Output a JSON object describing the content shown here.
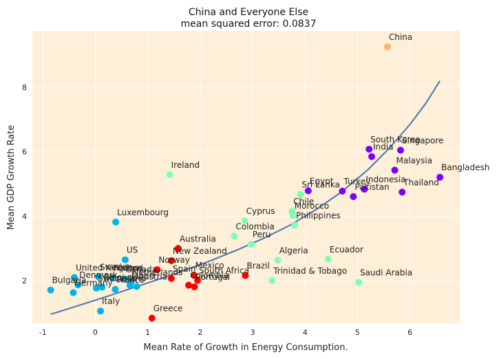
{
  "chart_data": {
    "type": "scatter",
    "title": "China and Everyone Else",
    "subtitle": "mean squared error: 0.0837",
    "xlabel": "Mean Rate of Growth in Energy Consumption.",
    "ylabel": "Mean GDP Growth Rate",
    "xlim": [
      -1.2,
      6.95
    ],
    "ylim": [
      0.68,
      9.75
    ],
    "xticks": [
      -1,
      0,
      1,
      2,
      3,
      4,
      5,
      6
    ],
    "yticks": [
      2,
      4,
      6,
      8
    ],
    "grid": true,
    "background": "#fdefd8",
    "line_color": "#4c72b0",
    "points": [
      {
        "label": "China",
        "x": 5.57,
        "y": 9.26,
        "color": "#fdb06d"
      },
      {
        "label": "Singapore",
        "x": 5.82,
        "y": 6.05,
        "color": "#7f00ff"
      },
      {
        "label": "South Korea",
        "x": 5.22,
        "y": 6.08,
        "color": "#7f00ff"
      },
      {
        "label": "India",
        "x": 5.27,
        "y": 5.85,
        "color": "#7f00ff"
      },
      {
        "label": "Malaysia",
        "x": 5.71,
        "y": 5.43,
        "color": "#7f00ff"
      },
      {
        "label": "Bangladesh",
        "x": 6.57,
        "y": 5.21,
        "color": "#7f00ff"
      },
      {
        "label": "Indonesia",
        "x": 5.13,
        "y": 4.84,
        "color": "#7f00ff"
      },
      {
        "label": "Thailand",
        "x": 5.85,
        "y": 4.75,
        "color": "#7f00ff"
      },
      {
        "label": "Pakistan",
        "x": 4.92,
        "y": 4.61,
        "color": "#7f00ff"
      },
      {
        "label": "Turkey",
        "x": 4.71,
        "y": 4.78,
        "color": "#7f00ff"
      },
      {
        "label": "Egypt",
        "x": 4.06,
        "y": 4.79,
        "color": "#7f00ff"
      },
      {
        "label": "Sri Lanka",
        "x": 3.91,
        "y": 4.68,
        "color": "#80ffb4"
      },
      {
        "label": "Chile",
        "x": 3.75,
        "y": 4.16,
        "color": "#80ffb4"
      },
      {
        "label": "Morocco",
        "x": 3.77,
        "y": 4.02,
        "color": "#80ffb4"
      },
      {
        "label": "Philippines",
        "x": 3.8,
        "y": 3.72,
        "color": "#80ffb4"
      },
      {
        "label": "Cyprus",
        "x": 2.85,
        "y": 3.86,
        "color": "#80ffb4"
      },
      {
        "label": "Colombia",
        "x": 2.65,
        "y": 3.38,
        "color": "#80ffb4"
      },
      {
        "label": "Peru",
        "x": 2.97,
        "y": 3.13,
        "color": "#80ffb4"
      },
      {
        "label": "Ireland",
        "x": 1.42,
        "y": 5.29,
        "color": "#80ffb4"
      },
      {
        "label": "Algeria",
        "x": 3.48,
        "y": 2.63,
        "color": "#80ffb4"
      },
      {
        "label": "Ecuador",
        "x": 4.44,
        "y": 2.67,
        "color": "#80ffb4"
      },
      {
        "label": "Trinidad & Tobago",
        "x": 3.37,
        "y": 2.0,
        "color": "#80ffb4"
      },
      {
        "label": "Saudi Arabia",
        "x": 5.02,
        "y": 1.95,
        "color": "#80ffb4"
      },
      {
        "label": "Australia",
        "x": 1.58,
        "y": 3.0,
        "color": "#ff0000"
      },
      {
        "label": "New Zealand",
        "x": 1.45,
        "y": 2.62,
        "color": "#ff0000"
      },
      {
        "label": "Norway",
        "x": 1.18,
        "y": 2.34,
        "color": "#ff0000"
      },
      {
        "label": "Spain",
        "x": 1.45,
        "y": 2.07,
        "color": "#ff0000"
      },
      {
        "label": "Mexico",
        "x": 1.88,
        "y": 2.17,
        "color": "#ff0000"
      },
      {
        "label": "South Africa",
        "x": 1.95,
        "y": 2.01,
        "color": "#ff0000"
      },
      {
        "label": "Colombia",
        "x": 1.78,
        "y": 1.86,
        "color": "#ff0000"
      },
      {
        "label": "Portugal",
        "x": 1.89,
        "y": 1.81,
        "color": "#ff0000"
      },
      {
        "label": "Brazil",
        "x": 2.86,
        "y": 2.16,
        "color": "#ff0000"
      },
      {
        "label": "Greece",
        "x": 1.08,
        "y": 0.84,
        "color": "#ff0000"
      },
      {
        "label": "Luxembourg",
        "x": 0.39,
        "y": 3.82,
        "color": "#00b4eb"
      },
      {
        "label": "US",
        "x": 0.57,
        "y": 2.65,
        "color": "#00b4eb"
      },
      {
        "label": "United Kingdom",
        "x": -0.4,
        "y": 2.1,
        "color": "#00b4eb"
      },
      {
        "label": "Sweden",
        "x": 0.06,
        "y": 2.12,
        "color": "#00b4eb"
      },
      {
        "label": "Finland",
        "x": 0.32,
        "y": 2.09,
        "color": "#00b4eb"
      },
      {
        "label": "Canada",
        "x": 0.55,
        "y": 2.05,
        "color": "#00b4eb"
      },
      {
        "label": "Netherlands",
        "x": 0.68,
        "y": 1.96,
        "color": "#00b4eb"
      },
      {
        "label": "Denmark",
        "x": -0.33,
        "y": 1.87,
        "color": "#00b4eb"
      },
      {
        "label": "Belgium",
        "x": 0.13,
        "y": 1.8,
        "color": "#00b4eb"
      },
      {
        "label": "Austria",
        "x": 0.79,
        "y": 1.82,
        "color": "#00b4eb"
      },
      {
        "label": "France",
        "x": 0.38,
        "y": 1.73,
        "color": "#00b4eb"
      },
      {
        "label": "Japan",
        "x": 0.66,
        "y": 1.86,
        "color": "#00b4eb"
      },
      {
        "label": "Switzerland",
        "x": 0.02,
        "y": 1.77,
        "color": "#00b4eb"
      },
      {
        "label": "Germany",
        "x": -0.42,
        "y": 1.63,
        "color": "#00b4eb"
      },
      {
        "label": "Bulgaria",
        "x": -0.85,
        "y": 1.71,
        "color": "#00b4eb"
      },
      {
        "label": "Italy",
        "x": 0.1,
        "y": 1.06,
        "color": "#00b4eb"
      }
    ],
    "fit_line": {
      "x": [
        -0.85,
        -0.3,
        0.2,
        0.7,
        1.2,
        1.7,
        2.2,
        2.7,
        3.2,
        3.7,
        4.2,
        4.7,
        5.2,
        5.6,
        6.0,
        6.3,
        6.57
      ],
      "y": [
        0.96,
        1.24,
        1.5,
        1.77,
        2.04,
        2.32,
        2.62,
        2.95,
        3.31,
        3.71,
        4.2,
        4.76,
        5.45,
        6.1,
        6.85,
        7.5,
        8.2
      ]
    }
  }
}
